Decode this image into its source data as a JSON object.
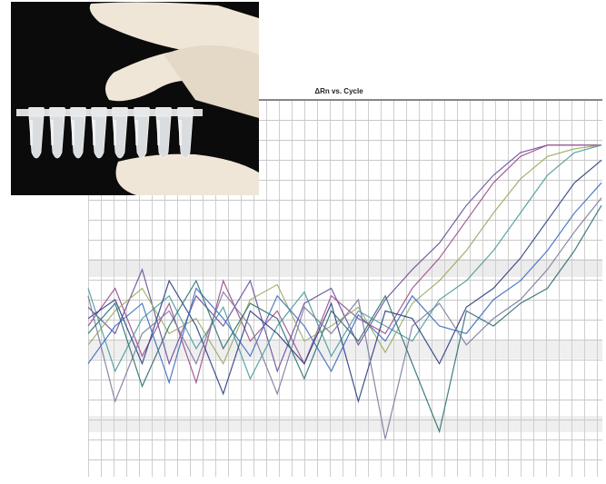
{
  "chart_data": {
    "type": "line",
    "title": "ΔRn vs. Cycle",
    "ylim": [
      0,
      1
    ],
    "series": [
      {
        "color": "#6a4c9c",
        "values": [
          0.45,
          0.38,
          0.55,
          0.3,
          0.48,
          0.4,
          0.52,
          0.28,
          0.46,
          0.5,
          0.35,
          0.47,
          0.55,
          0.62,
          0.72,
          0.8,
          0.86,
          0.88,
          0.88,
          0.88
        ]
      },
      {
        "color": "#9a4c8c",
        "values": [
          0.4,
          0.5,
          0.32,
          0.46,
          0.25,
          0.52,
          0.36,
          0.44,
          0.3,
          0.48,
          0.42,
          0.38,
          0.5,
          0.58,
          0.68,
          0.78,
          0.85,
          0.88,
          0.88,
          0.88
        ]
      },
      {
        "color": "#9aa860",
        "values": [
          0.35,
          0.44,
          0.5,
          0.38,
          0.42,
          0.3,
          0.47,
          0.51,
          0.36,
          0.4,
          0.45,
          0.33,
          0.46,
          0.52,
          0.6,
          0.7,
          0.79,
          0.85,
          0.87,
          0.88
        ]
      },
      {
        "color": "#4a9a9a",
        "values": [
          0.5,
          0.28,
          0.42,
          0.48,
          0.34,
          0.45,
          0.26,
          0.4,
          0.49,
          0.32,
          0.44,
          0.4,
          0.36,
          0.47,
          0.52,
          0.6,
          0.7,
          0.8,
          0.86,
          0.88
        ]
      },
      {
        "color": "#2c3e80",
        "values": [
          0.42,
          0.47,
          0.3,
          0.52,
          0.4,
          0.22,
          0.44,
          0.38,
          0.3,
          0.46,
          0.2,
          0.44,
          0.42,
          0.3,
          0.45,
          0.5,
          0.58,
          0.68,
          0.78,
          0.84
        ]
      },
      {
        "color": "#3c6cc0",
        "values": [
          0.3,
          0.4,
          0.46,
          0.25,
          0.5,
          0.42,
          0.32,
          0.48,
          0.4,
          0.28,
          0.43,
          0.36,
          0.48,
          0.4,
          0.38,
          0.47,
          0.52,
          0.6,
          0.7,
          0.78
        ]
      },
      {
        "color": "#7a7aa0",
        "values": [
          0.48,
          0.2,
          0.38,
          0.44,
          0.3,
          0.49,
          0.4,
          0.22,
          0.45,
          0.38,
          0.47,
          0.1,
          0.4,
          0.46,
          0.35,
          0.42,
          0.47,
          0.55,
          0.65,
          0.74
        ]
      },
      {
        "color": "#2f6f70",
        "values": [
          0.38,
          0.46,
          0.24,
          0.4,
          0.52,
          0.34,
          0.46,
          0.42,
          0.26,
          0.44,
          0.36,
          0.48,
          0.3,
          0.12,
          0.44,
          0.4,
          0.46,
          0.5,
          0.6,
          0.72
        ]
      }
    ]
  }
}
